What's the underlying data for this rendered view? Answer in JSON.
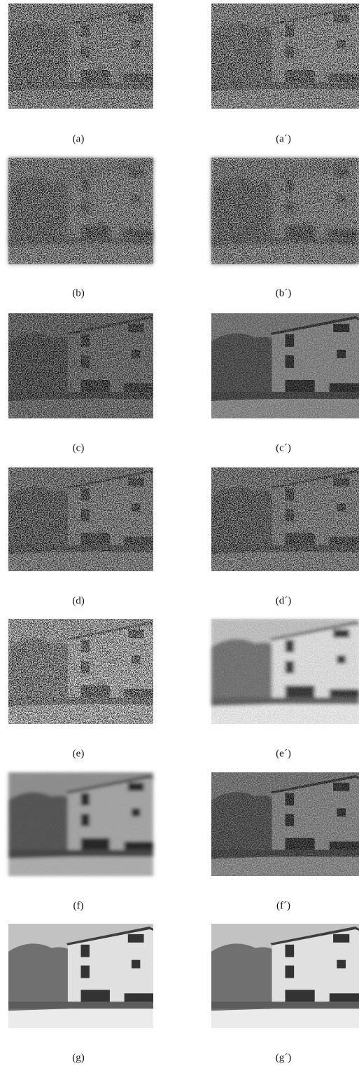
{
  "panels": [
    {
      "label": "(a)"
    },
    {
      "label": "(a´)"
    },
    {
      "label": "(b)"
    },
    {
      "label": "(b´)"
    },
    {
      "label": "(c)"
    },
    {
      "label": "(c´)"
    },
    {
      "label": "(d)"
    },
    {
      "label": "(d´)"
    },
    {
      "label": "(e)"
    },
    {
      "label": "(e´)"
    },
    {
      "label": "(f)"
    },
    {
      "label": "(f´)"
    },
    {
      "label": "(g)"
    },
    {
      "label": "(g´)"
    }
  ]
}
